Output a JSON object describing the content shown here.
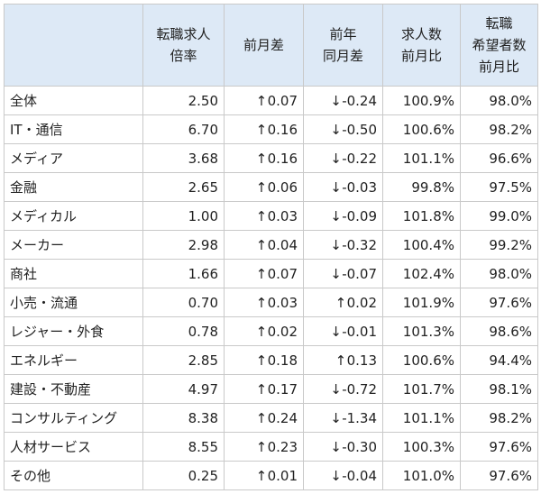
{
  "table": {
    "headers": [
      {
        "lines": [
          ""
        ]
      },
      {
        "lines": [
          "転職求人",
          "倍率"
        ]
      },
      {
        "lines": [
          "前月差"
        ]
      },
      {
        "lines": [
          "前年",
          "同月差"
        ]
      },
      {
        "lines": [
          "求人数",
          "前月比"
        ]
      },
      {
        "lines": [
          "転職",
          "希望者数",
          "前月比"
        ]
      }
    ],
    "rows": [
      {
        "name": "全体",
        "ratio": "2.50",
        "mom_arrow": "↑",
        "mom": "0.07",
        "yoy_arrow": "↓",
        "yoy": "-0.24",
        "jobs": "100.9%",
        "seekers": "98.0%"
      },
      {
        "name": "IT・通信",
        "ratio": "6.70",
        "mom_arrow": "↑",
        "mom": "0.16",
        "yoy_arrow": "↓",
        "yoy": "-0.50",
        "jobs": "100.6%",
        "seekers": "98.2%"
      },
      {
        "name": "メディア",
        "ratio": "3.68",
        "mom_arrow": "↑",
        "mom": "0.16",
        "yoy_arrow": "↓",
        "yoy": "-0.22",
        "jobs": "101.1%",
        "seekers": "96.6%"
      },
      {
        "name": "金融",
        "ratio": "2.65",
        "mom_arrow": "↑",
        "mom": "0.06",
        "yoy_arrow": "↓",
        "yoy": "-0.03",
        "jobs": "99.8%",
        "seekers": "97.5%"
      },
      {
        "name": "メディカル",
        "ratio": "1.00",
        "mom_arrow": "↑",
        "mom": "0.03",
        "yoy_arrow": "↓",
        "yoy": "-0.09",
        "jobs": "101.8%",
        "seekers": "99.0%"
      },
      {
        "name": "メーカー",
        "ratio": "2.98",
        "mom_arrow": "↑",
        "mom": "0.04",
        "yoy_arrow": "↓",
        "yoy": "-0.32",
        "jobs": "100.4%",
        "seekers": "99.2%"
      },
      {
        "name": "商社",
        "ratio": "1.66",
        "mom_arrow": "↑",
        "mom": "0.07",
        "yoy_arrow": "↓",
        "yoy": "-0.07",
        "jobs": "102.4%",
        "seekers": "98.0%"
      },
      {
        "name": "小売・流通",
        "ratio": "0.70",
        "mom_arrow": "↑",
        "mom": "0.03",
        "yoy_arrow": "↑",
        "yoy": "0.02",
        "jobs": "101.9%",
        "seekers": "97.6%"
      },
      {
        "name": "レジャー・外食",
        "ratio": "0.78",
        "mom_arrow": "↑",
        "mom": "0.02",
        "yoy_arrow": "↓",
        "yoy": "-0.01",
        "jobs": "101.3%",
        "seekers": "98.6%"
      },
      {
        "name": "エネルギー",
        "ratio": "2.85",
        "mom_arrow": "↑",
        "mom": "0.18",
        "yoy_arrow": "↑",
        "yoy": "0.13",
        "jobs": "100.6%",
        "seekers": "94.4%"
      },
      {
        "name": "建設・不動産",
        "ratio": "4.97",
        "mom_arrow": "↑",
        "mom": "0.17",
        "yoy_arrow": "↓",
        "yoy": "-0.72",
        "jobs": "101.7%",
        "seekers": "98.1%"
      },
      {
        "name": "コンサルティング",
        "ratio": "8.38",
        "mom_arrow": "↑",
        "mom": "0.24",
        "yoy_arrow": "↓",
        "yoy": "-1.34",
        "jobs": "101.1%",
        "seekers": "98.2%"
      },
      {
        "name": "人材サービス",
        "ratio": "8.55",
        "mom_arrow": "↑",
        "mom": "0.23",
        "yoy_arrow": "↓",
        "yoy": "-0.30",
        "jobs": "100.3%",
        "seekers": "97.6%"
      },
      {
        "name": "その他",
        "ratio": "0.25",
        "mom_arrow": "↑",
        "mom": "0.01",
        "yoy_arrow": "↓",
        "yoy": "-0.04",
        "jobs": "101.0%",
        "seekers": "97.6%"
      }
    ]
  }
}
